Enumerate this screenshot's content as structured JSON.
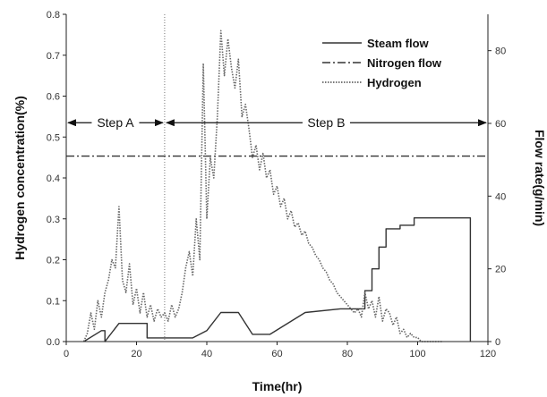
{
  "chart_data": {
    "type": "line",
    "x_axis": {
      "label": "Time(hr)",
      "range": [
        0,
        120
      ],
      "ticks": [
        0,
        20,
        40,
        60,
        80,
        100,
        120
      ]
    },
    "y_axis_left": {
      "label": "Hydrogen concentration(%)",
      "range": [
        0.0,
        0.8
      ],
      "ticks": [
        "0.0",
        "0.1",
        "0.2",
        "0.3",
        "0.4",
        "0.5",
        "0.6",
        "0.7",
        "0.8"
      ]
    },
    "y_axis_right": {
      "label": "Flow rate(g/min)",
      "range": [
        0,
        90
      ],
      "ticks": [
        0,
        20,
        40,
        60,
        80
      ]
    },
    "grid": false,
    "legend": {
      "placement": "top-right"
    },
    "series": [
      {
        "name": "Steam flow",
        "axis": "right",
        "style": "solid",
        "color": "#333333",
        "x": [
          5,
          10,
          11,
          11,
          15,
          23,
          23,
          27,
          36,
          40,
          44,
          49,
          53,
          58,
          68,
          78,
          85,
          85,
          87,
          87,
          89,
          89,
          91,
          91,
          95,
          95,
          99,
          99,
          115,
          115
        ],
        "y": [
          0,
          3,
          3,
          0,
          5,
          5,
          1,
          1,
          1,
          3,
          8,
          8,
          2,
          2,
          8,
          9,
          9,
          14,
          14,
          20,
          20,
          26,
          26,
          31,
          31,
          32,
          32,
          34,
          34,
          0
        ]
      },
      {
        "name": "Nitrogen flow",
        "axis": "right",
        "style": "dashdot",
        "color": "#333333",
        "x": [
          0,
          120
        ],
        "y": [
          51,
          51
        ]
      },
      {
        "name": "Hydrogen",
        "axis": "left",
        "style": "dotted",
        "color": "#666666",
        "x": [
          5,
          6,
          7,
          8,
          9,
          10,
          11,
          12,
          13,
          14,
          15,
          16,
          17,
          18,
          19,
          20,
          21,
          22,
          23,
          24,
          25,
          26,
          27,
          28,
          29,
          30,
          31,
          32,
          33,
          34,
          35,
          36,
          37,
          38,
          39,
          40,
          41,
          42,
          43,
          44,
          45,
          46,
          47,
          48,
          49,
          50,
          51,
          52,
          53,
          54,
          55,
          56,
          57,
          58,
          59,
          60,
          61,
          62,
          63,
          64,
          65,
          66,
          67,
          68,
          69,
          70,
          71,
          72,
          73,
          74,
          75,
          76,
          77,
          78,
          79,
          80,
          81,
          82,
          83,
          84,
          85,
          86,
          87,
          88,
          89,
          90,
          91,
          92,
          93,
          94,
          95,
          96,
          97,
          98,
          99,
          100,
          101,
          102,
          103,
          104,
          105,
          106,
          107
        ],
        "y": [
          0.0,
          0.02,
          0.07,
          0.03,
          0.1,
          0.06,
          0.12,
          0.15,
          0.2,
          0.18,
          0.33,
          0.15,
          0.12,
          0.19,
          0.09,
          0.13,
          0.07,
          0.12,
          0.06,
          0.09,
          0.05,
          0.08,
          0.06,
          0.07,
          0.05,
          0.09,
          0.06,
          0.08,
          0.12,
          0.18,
          0.22,
          0.16,
          0.3,
          0.2,
          0.68,
          0.3,
          0.45,
          0.4,
          0.55,
          0.76,
          0.65,
          0.74,
          0.67,
          0.62,
          0.69,
          0.55,
          0.58,
          0.52,
          0.45,
          0.48,
          0.42,
          0.46,
          0.4,
          0.42,
          0.36,
          0.38,
          0.33,
          0.35,
          0.3,
          0.32,
          0.28,
          0.29,
          0.26,
          0.27,
          0.24,
          0.23,
          0.21,
          0.2,
          0.18,
          0.17,
          0.15,
          0.14,
          0.12,
          0.11,
          0.1,
          0.09,
          0.08,
          0.07,
          0.08,
          0.06,
          0.12,
          0.08,
          0.1,
          0.06,
          0.11,
          0.05,
          0.08,
          0.07,
          0.04,
          0.06,
          0.02,
          0.03,
          0.01,
          0.02,
          0.01,
          0.01,
          0.0,
          0.0,
          0.0,
          0.0,
          0.0,
          0.0,
          0.0
        ]
      }
    ],
    "annotations": [
      {
        "text": "Step A",
        "kind": "span-arrow",
        "x_from": 0,
        "x_to": 28,
        "y": 0.535
      },
      {
        "text": "Step B",
        "kind": "span-arrow",
        "x_from": 28,
        "x_to": 120,
        "y": 0.535
      }
    ],
    "vertical_line": {
      "x": 28,
      "style": "dotted"
    }
  }
}
